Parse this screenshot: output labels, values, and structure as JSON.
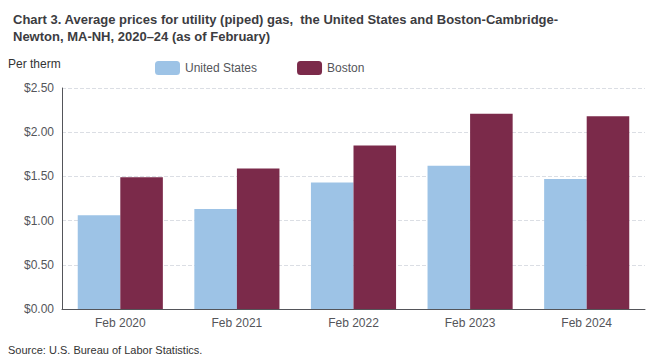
{
  "chart_data": {
    "type": "bar",
    "title": "Chart 3. Average prices for utility (piped) gas,  the United States and Boston-Cambridge-\nNewton, MA-NH, 2020–24 (as of February)",
    "ylabel": "Per therm",
    "annotations": [
      "Source: U.S. Bureau of Labor Statistics."
    ],
    "categories": [
      "Feb 2020",
      "Feb 2021",
      "Feb 2022",
      "Feb 2023",
      "Feb 2024"
    ],
    "series": [
      {
        "name": "United States",
        "color": "#9dc3e6",
        "values": [
          1.06,
          1.13,
          1.43,
          1.62,
          1.47
        ]
      },
      {
        "name": "Boston",
        "color": "#7b2a4a",
        "values": [
          1.49,
          1.59,
          1.85,
          2.21,
          2.18
        ]
      }
    ],
    "ylim": [
      0,
      2.5
    ],
    "yticks": [
      {
        "value": 0.0,
        "label": "$0.00"
      },
      {
        "value": 0.5,
        "label": "$0.50"
      },
      {
        "value": 1.0,
        "label": "$1.00"
      },
      {
        "value": 1.5,
        "label": "$1.50"
      },
      {
        "value": 2.0,
        "label": "$2.00"
      },
      {
        "value": 2.5,
        "label": "$2.50"
      }
    ],
    "grid": true,
    "legend": "top"
  }
}
